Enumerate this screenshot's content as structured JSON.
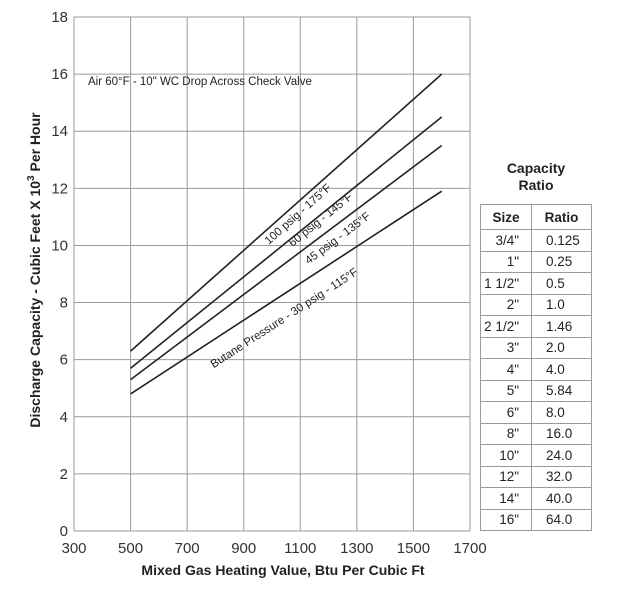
{
  "chart_data": {
    "type": "line",
    "title": "",
    "note": "Air 60°F - 10\" WC Drop Across Check Valve",
    "xlabel": "Mixed Gas Heating Value, Btu Per Cubic Ft",
    "ylabel_prefix": "Discharge Capacity - Cubic Feet X 10",
    "ylabel_exp": "3",
    "ylabel_suffix": " Per Hour",
    "xlim": [
      300,
      1700
    ],
    "ylim": [
      0,
      18
    ],
    "xticks": [
      300,
      500,
      700,
      900,
      1100,
      1300,
      1500,
      1700
    ],
    "yticks": [
      0,
      2,
      4,
      6,
      8,
      10,
      12,
      14,
      16,
      18
    ],
    "grid": true,
    "series": [
      {
        "name": "100 psig - 175°F",
        "x": [
          500,
          1600
        ],
        "y": [
          6.3,
          16.0
        ],
        "label_at": [
          1100,
          11.0
        ]
      },
      {
        "name": "60 psig - 145°F",
        "x": [
          500,
          1600
        ],
        "y": [
          5.7,
          14.5
        ],
        "label_at": [
          1180,
          10.8
        ]
      },
      {
        "name": "45 psig - 135°F",
        "x": [
          500,
          1600
        ],
        "y": [
          5.3,
          13.5
        ],
        "label_at": [
          1240,
          10.15
        ]
      },
      {
        "name": "Butane Pressure - 30 psig - 115°F",
        "x": [
          500,
          1600
        ],
        "y": [
          4.8,
          11.9
        ],
        "label_at": [
          1050,
          7.35
        ]
      }
    ]
  },
  "capacity_ratio": {
    "title_line1": "Capacity",
    "title_line2": "Ratio",
    "headers": {
      "size": "Size",
      "ratio": "Ratio"
    },
    "rows": [
      {
        "size": "3/4\"",
        "ratio": "0.125"
      },
      {
        "size": "1\"",
        "ratio": "0.25"
      },
      {
        "size": "1 1/2\"",
        "ratio": "0.5"
      },
      {
        "size": "2\"",
        "ratio": "1.0"
      },
      {
        "size": "2 1/2\"",
        "ratio": "1.46"
      },
      {
        "size": "3\"",
        "ratio": "2.0"
      },
      {
        "size": "4\"",
        "ratio": "4.0"
      },
      {
        "size": "5\"",
        "ratio": "5.84"
      },
      {
        "size": "6\"",
        "ratio": "8.0"
      },
      {
        "size": "8\"",
        "ratio": "16.0"
      },
      {
        "size": "10\"",
        "ratio": "24.0"
      },
      {
        "size": "12\"",
        "ratio": "32.0"
      },
      {
        "size": "14\"",
        "ratio": "40.0"
      },
      {
        "size": "16\"",
        "ratio": "64.0"
      }
    ]
  }
}
